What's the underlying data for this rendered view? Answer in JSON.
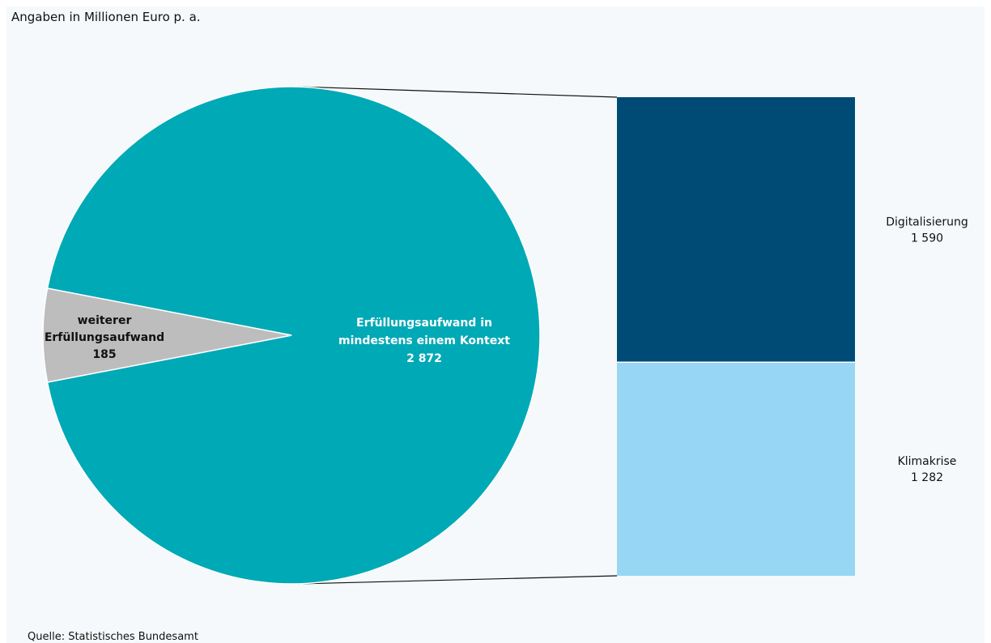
{
  "subtitle": "Angaben in Millionen Euro p. a.",
  "source": "Quelle: Statistisches Bundesamt",
  "chart_data": {
    "type": "pie",
    "slices": [
      {
        "label": [
          "Erfüllungsaufwand in",
          "mindestens einem Kontext"
        ],
        "value": 2872,
        "display": "2 872",
        "color": "#00a9b6"
      },
      {
        "label": [
          "weiterer",
          "Erfüllungsaufwand"
        ],
        "value": 185,
        "display": "185",
        "color": "#bdbdbd"
      }
    ],
    "breakdown": {
      "of_slice": 0,
      "type": "stacked-bar",
      "segments": [
        {
          "label": "Digitalisierung",
          "value": 1590,
          "display": "1 590",
          "color": "#004b76"
        },
        {
          "label": "Klimakrise",
          "value": 1282,
          "display": "1 282",
          "color": "#97d6f4"
        }
      ]
    }
  }
}
